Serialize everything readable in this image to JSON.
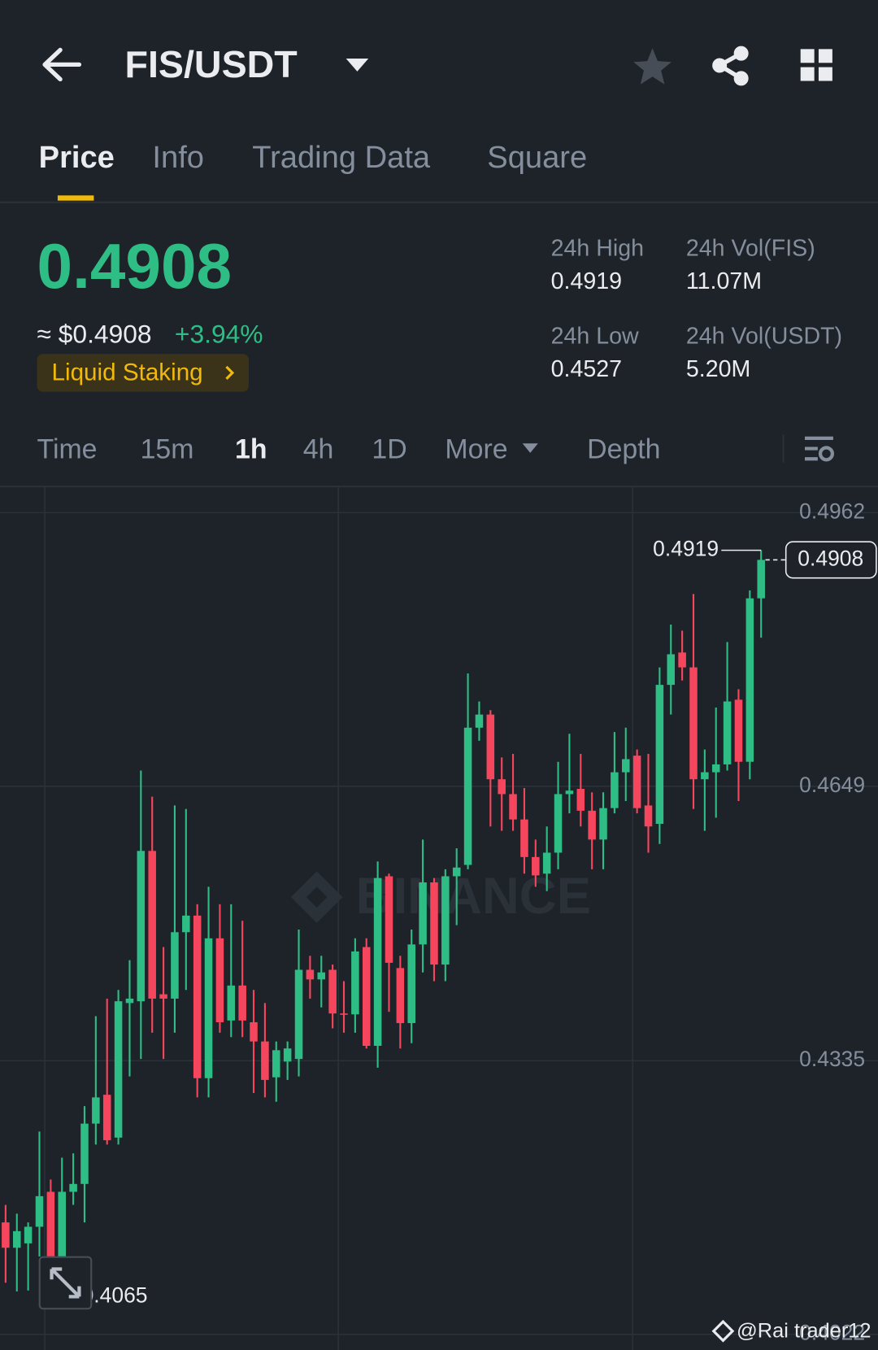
{
  "header": {
    "pair": "FIS/USDT"
  },
  "tabs": [
    "Price",
    "Info",
    "Trading Data",
    "Square"
  ],
  "ticker": {
    "last": "0.4908",
    "usd": "≈ $0.4908",
    "change": "+3.94%",
    "tag": "Liquid Staking"
  },
  "stats": [
    {
      "label": "24h High",
      "value": "0.4919"
    },
    {
      "label": "24h Vol(FIS)",
      "value": "11.07M"
    },
    {
      "label": "24h Low",
      "value": "0.4527"
    },
    {
      "label": "24h Vol(USDT)",
      "value": "5.20M"
    }
  ],
  "intervals": [
    "Time",
    "15m",
    "1h",
    "4h",
    "1D",
    "More",
    "Depth"
  ],
  "chart_data": {
    "type": "candlestick",
    "up_color": "#2ebd85",
    "down_color": "#f6465d",
    "ylim": [
      0.4004,
      0.4992
    ],
    "yticks": [
      0.4962,
      0.4649,
      0.4335,
      0.4022
    ],
    "grid": true,
    "watermark": "BINANCE",
    "high_label": 0.4919,
    "low_label": 0.4065,
    "last_price": 0.4908,
    "open": [
      0.415,
      0.4121,
      0.4126,
      0.4145,
      0.4185,
      0.4111,
      0.4185,
      0.4194,
      0.4263,
      0.4296,
      0.4247,
      0.4401,
      0.4403,
      0.4575,
      0.4411,
      0.4406,
      0.4482,
      0.4501,
      0.4315,
      0.4475,
      0.4381,
      0.4421,
      0.4379,
      0.4357,
      0.4316,
      0.4334,
      0.4337,
      0.4439,
      0.4428,
      0.4439,
      0.4389,
      0.4388,
      0.4465,
      0.4352,
      0.4546,
      0.4441,
      0.4378,
      0.4468,
      0.4539,
      0.4445,
      0.4546,
      0.4559,
      0.4716,
      0.4731,
      0.4657,
      0.464,
      0.4611,
      0.4568,
      0.4549,
      0.4573,
      0.464,
      0.4646,
      0.4621,
      0.4588,
      0.4624,
      0.4665,
      0.4684,
      0.4627,
      0.4606,
      0.4765,
      0.4802,
      0.4785,
      0.4657,
      0.4665,
      0.4674,
      0.4748,
      0.4677,
      0.4864
    ],
    "high": [
      0.417,
      0.416,
      0.415,
      0.4254,
      0.4199,
      0.4224,
      0.4229,
      0.4283,
      0.4386,
      0.4406,
      0.4416,
      0.445,
      0.4667,
      0.4637,
      0.4465,
      0.4627,
      0.4623,
      0.4514,
      0.4534,
      0.4514,
      0.4514,
      0.4495,
      0.4416,
      0.4401,
      0.4357,
      0.4357,
      0.4485,
      0.4455,
      0.4455,
      0.4445,
      0.4426,
      0.4475,
      0.4475,
      0.4563,
      0.4549,
      0.4455,
      0.4485,
      0.4588,
      0.4544,
      0.4554,
      0.4578,
      0.4778,
      0.4746,
      0.4736,
      0.4682,
      0.4686,
      0.4647,
      0.4588,
      0.4603,
      0.4677,
      0.4709,
      0.4686,
      0.4642,
      0.4642,
      0.4711,
      0.4716,
      0.4691,
      0.4686,
      0.4785,
      0.4834,
      0.4827,
      0.4869,
      0.4691,
      0.4739,
      0.4814,
      0.476,
      0.4873,
      0.4919
    ],
    "low": [
      0.4081,
      0.4071,
      0.4072,
      0.4111,
      0.4065,
      0.4091,
      0.417,
      0.415,
      0.4239,
      0.4239,
      0.4239,
      0.4317,
      0.4337,
      0.4367,
      0.4337,
      0.4367,
      0.4416,
      0.4293,
      0.4293,
      0.4367,
      0.4362,
      0.4362,
      0.4298,
      0.4293,
      0.4288,
      0.4313,
      0.4317,
      0.4406,
      0.4396,
      0.4372,
      0.4367,
      0.4367,
      0.4349,
      0.4327,
      0.4391,
      0.4349,
      0.4355,
      0.4436,
      0.4426,
      0.4426,
      0.449,
      0.4554,
      0.4701,
      0.4603,
      0.4598,
      0.4598,
      0.4549,
      0.4534,
      0.4529,
      0.4554,
      0.4618,
      0.4603,
      0.4554,
      0.4554,
      0.4618,
      0.4632,
      0.4618,
      0.4573,
      0.4583,
      0.4731,
      0.477,
      0.4623,
      0.4598,
      0.4613,
      0.4667,
      0.4632,
      0.4657,
      0.4819
    ],
    "close": [
      0.4121,
      0.414,
      0.4145,
      0.418,
      0.4111,
      0.4185,
      0.4194,
      0.4263,
      0.4293,
      0.4244,
      0.4403,
      0.4406,
      0.4575,
      0.4406,
      0.4406,
      0.4482,
      0.4501,
      0.4315,
      0.4475,
      0.4379,
      0.4421,
      0.4381,
      0.4357,
      0.4313,
      0.4347,
      0.4349,
      0.4439,
      0.4428,
      0.4436,
      0.4389,
      0.4388,
      0.446,
      0.4352,
      0.4544,
      0.4447,
      0.4378,
      0.4468,
      0.4539,
      0.4445,
      0.4546,
      0.4556,
      0.4716,
      0.4731,
      0.4657,
      0.464,
      0.4611,
      0.4568,
      0.4547,
      0.4573,
      0.464,
      0.4644,
      0.4621,
      0.4588,
      0.4624,
      0.4665,
      0.468,
      0.4624,
      0.4603,
      0.4765,
      0.48,
      0.4785,
      0.4657,
      0.4665,
      0.4674,
      0.4746,
      0.4677,
      0.4864,
      0.4908
    ]
  },
  "footer": {
    "credit": "@Rai trader12"
  }
}
